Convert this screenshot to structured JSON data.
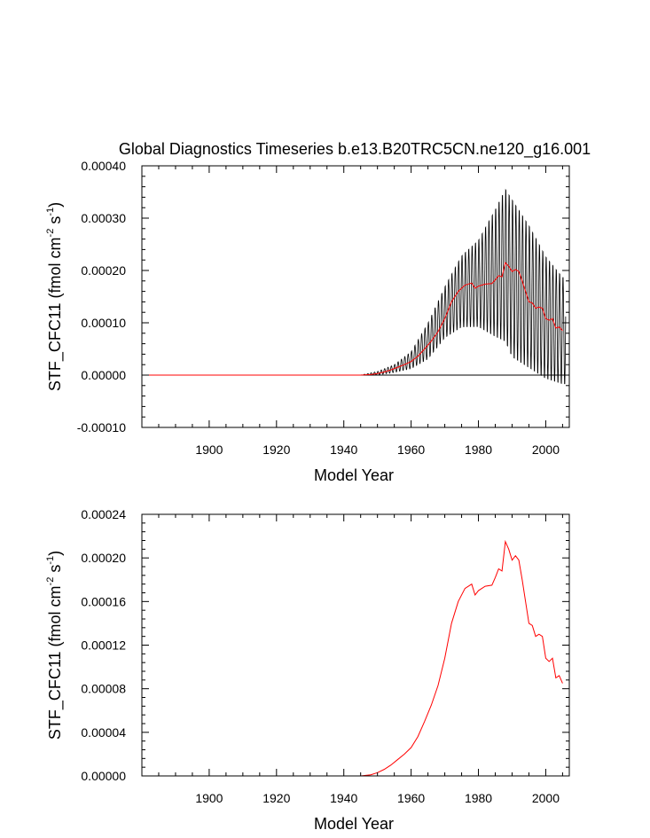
{
  "figure": {
    "title": "Global Diagnostics Timeseries b.e13.B20TRC5CN.ne120_g16.001"
  },
  "chart_data": [
    {
      "type": "line",
      "title": "Global Diagnostics Timeseries b.e13.B20TRC5CN.ne120_g16.001",
      "xlabel": "Model Year",
      "ylabel": "STF_CFC11 (fmol cm-2 s-1)",
      "ylabel_parts": [
        "STF_CFC11 (fmol cm",
        "-2",
        " s",
        "-1",
        ")"
      ],
      "xlim": [
        1880,
        2007
      ],
      "ylim": [
        -0.0001,
        0.0004
      ],
      "xticks": [
        1900,
        1920,
        1940,
        1960,
        1980,
        2000
      ],
      "xtick_labels": [
        "1900",
        "1920",
        "1940",
        "1960",
        "1980",
        "2000"
      ],
      "yticks": [
        -0.0001,
        0,
        0.0001,
        0.0002,
        0.0003,
        0.0004
      ],
      "ytick_labels": [
        "-0.00010",
        "0.00000",
        "0.00010",
        "0.00020",
        "0.00030",
        "0.00040"
      ],
      "reference_line": 0,
      "series": [
        {
          "kind": "monthly",
          "color": "#000000",
          "envelope_years": [
            1880,
            1945,
            1950,
            1955,
            1960,
            1965,
            1970,
            1975,
            1980,
            1985,
            1988,
            1990,
            1995,
            2000,
            2005
          ],
          "envelope_max": [
            0,
            0,
            7e-06,
            2e-05,
            4.5e-05,
            0.0001,
            0.00017,
            0.00023,
            0.00026,
            0.00032,
            0.00036,
            0.00034,
            0.00029,
            0.00023,
            0.00019
          ],
          "envelope_min": [
            0,
            0,
            0,
            5e-06,
            1.2e-05,
            3e-05,
            7e-05,
            9e-05,
            9e-05,
            7e-05,
            6e-05,
            3e-05,
            1e-05,
            -1e-05,
            -2e-05
          ]
        },
        {
          "kind": "annual",
          "color": "#ff0000",
          "years": [
            1880,
            1945,
            1948,
            1950,
            1952,
            1954,
            1956,
            1958,
            1960,
            1962,
            1964,
            1966,
            1968,
            1970,
            1972,
            1974,
            1976,
            1978,
            1979,
            1980,
            1982,
            1984,
            1985,
            1986,
            1987,
            1988,
            1989,
            1990,
            1991,
            1992,
            1993,
            1994,
            1995,
            1996,
            1997,
            1998,
            1999,
            2000,
            2001,
            2002,
            2003,
            2004,
            2005
          ],
          "values": [
            0,
            0,
            1e-06,
            3e-06,
            6e-06,
            1e-05,
            1.5e-05,
            2e-05,
            2.6e-05,
            3.6e-05,
            5e-05,
            6.5e-05,
            8.3e-05,
            0.000108,
            0.00014,
            0.00016,
            0.000172,
            0.000176,
            0.000166,
            0.00017,
            0.000174,
            0.000175,
            0.000182,
            0.00019,
            0.000188,
            0.000215,
            0.000208,
            0.000198,
            0.000202,
            0.000198,
            0.00018,
            0.00016,
            0.00014,
            0.000138,
            0.000128,
            0.00013,
            0.000128,
            0.000108,
            0.000105,
            0.000108,
            9e-05,
            9.2e-05,
            8.5e-05
          ]
        }
      ]
    },
    {
      "type": "line",
      "xlabel": "Model Year",
      "ylabel": "STF_CFC11 (fmol cm-2 s-1)",
      "ylabel_parts": [
        "STF_CFC11 (fmol cm",
        "-2",
        " s",
        "-1",
        ")"
      ],
      "xlim": [
        1880,
        2007
      ],
      "ylim": [
        0,
        0.00024
      ],
      "xticks": [
        1900,
        1920,
        1940,
        1960,
        1980,
        2000
      ],
      "xtick_labels": [
        "1900",
        "1920",
        "1940",
        "1960",
        "1980",
        "2000"
      ],
      "yticks": [
        0,
        4e-05,
        8e-05,
        0.00012,
        0.00016,
        0.0002,
        0.00024
      ],
      "ytick_labels": [
        "0.00000",
        "0.00004",
        "0.00008",
        "0.00012",
        "0.00016",
        "0.00020",
        "0.00024"
      ],
      "series": [
        {
          "kind": "annual",
          "color": "#ff0000",
          "years": [
            1880,
            1945,
            1948,
            1950,
            1952,
            1954,
            1956,
            1958,
            1960,
            1962,
            1964,
            1966,
            1968,
            1970,
            1972,
            1974,
            1976,
            1978,
            1979,
            1980,
            1982,
            1984,
            1985,
            1986,
            1987,
            1988,
            1989,
            1990,
            1991,
            1992,
            1993,
            1994,
            1995,
            1996,
            1997,
            1998,
            1999,
            2000,
            2001,
            2002,
            2003,
            2004,
            2005
          ],
          "values": [
            0,
            0,
            1e-06,
            3e-06,
            6e-06,
            1e-05,
            1.5e-05,
            2e-05,
            2.6e-05,
            3.6e-05,
            5e-05,
            6.5e-05,
            8.3e-05,
            0.000108,
            0.00014,
            0.00016,
            0.000172,
            0.000176,
            0.000166,
            0.00017,
            0.000174,
            0.000175,
            0.000182,
            0.00019,
            0.000188,
            0.000215,
            0.000208,
            0.000198,
            0.000202,
            0.000198,
            0.00018,
            0.00016,
            0.00014,
            0.000138,
            0.000128,
            0.00013,
            0.000128,
            0.000108,
            0.000105,
            0.000108,
            9e-05,
            9.2e-05,
            8.5e-05
          ]
        }
      ]
    }
  ]
}
